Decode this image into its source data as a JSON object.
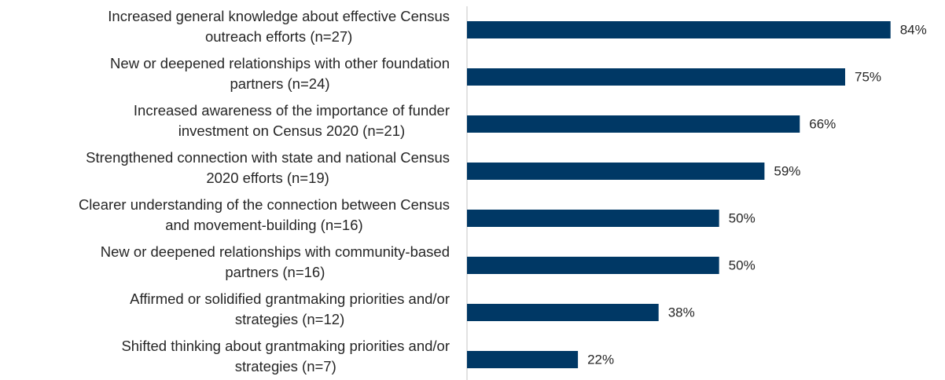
{
  "chart_data": {
    "type": "bar",
    "orientation": "horizontal",
    "categories": [
      [
        "Increased general knowledge about effective Census",
        "outreach efforts (n=27)"
      ],
      [
        "New or deepened relationships with other foundation",
        "partners (n=24)"
      ],
      [
        "Increased awareness of the importance of funder",
        "investment on Census 2020 (n=21)"
      ],
      [
        "Strengthened connection with state and national Census",
        "2020 efforts (n=19)"
      ],
      [
        "Clearer understanding of the connection between Census",
        "and movement-building (n=16)"
      ],
      [
        "New or deepened relationships with community-based",
        "partners (n=16)"
      ],
      [
        "Affirmed or solidified grantmaking priorities and/or",
        "strategies (n=12)"
      ],
      [
        "Shifted thinking about grantmaking priorities and/or",
        "strategies (n=7)"
      ]
    ],
    "values": [
      84,
      75,
      66,
      59,
      50,
      50,
      38,
      22
    ],
    "value_labels": [
      "84%",
      "75%",
      "66%",
      "59%",
      "50%",
      "50%",
      "38%",
      "22%"
    ],
    "color": "#003865"
  }
}
